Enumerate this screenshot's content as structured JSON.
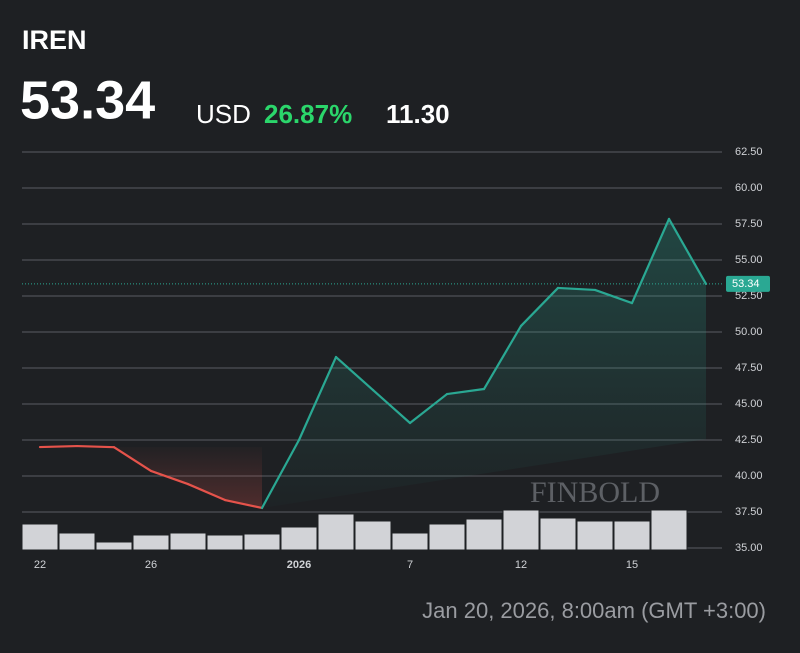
{
  "header": {
    "symbol": "IREN",
    "price": "53.34",
    "currency": "USD",
    "change_pct": "26.87%",
    "change": "11.30"
  },
  "chart_data": {
    "type": "line",
    "categories": [
      "22",
      null,
      null,
      "26",
      null,
      null,
      null,
      "2026",
      null,
      null,
      "7",
      null,
      null,
      "12",
      null,
      null,
      "15",
      null,
      null
    ],
    "values": [
      42.01,
      42.08,
      42.0,
      40.35,
      39.44,
      38.33,
      37.78,
      42.5,
      48.26,
      45.97,
      43.68,
      45.69,
      46.04,
      50.42,
      53.06,
      52.92,
      52.01,
      57.85,
      53.34
    ],
    "volume": [
      26,
      17,
      8,
      15,
      17,
      15,
      16,
      23,
      36,
      29,
      17,
      26,
      31,
      40,
      32,
      29,
      29,
      40,
      1
    ],
    "down_color": "#e5534b",
    "up_color": "#2aa893",
    "volume_color": "#d2d3d7",
    "ylim": [
      35,
      62.5
    ],
    "yticks": [
      {
        "value": 35,
        "label": "35.00"
      },
      {
        "value": 37.5,
        "label": "37.50"
      },
      {
        "value": 40,
        "label": "40.00"
      },
      {
        "value": 42.5,
        "label": "42.50"
      },
      {
        "value": 45,
        "label": "45.00"
      },
      {
        "value": 47.5,
        "label": "47.50"
      },
      {
        "value": 50,
        "label": "50.00"
      },
      {
        "value": 52.5,
        "label": "52.50"
      },
      {
        "value": 55,
        "label": "55.00"
      },
      {
        "value": 57.5,
        "label": "57.50"
      },
      {
        "value": 60,
        "label": "60.00"
      },
      {
        "value": 62.5,
        "label": "62.50"
      }
    ],
    "grid": true,
    "watermark": "FINBOLD"
  },
  "footer": "Jan 20, 2026, 8:00am (GMT +3:00)"
}
